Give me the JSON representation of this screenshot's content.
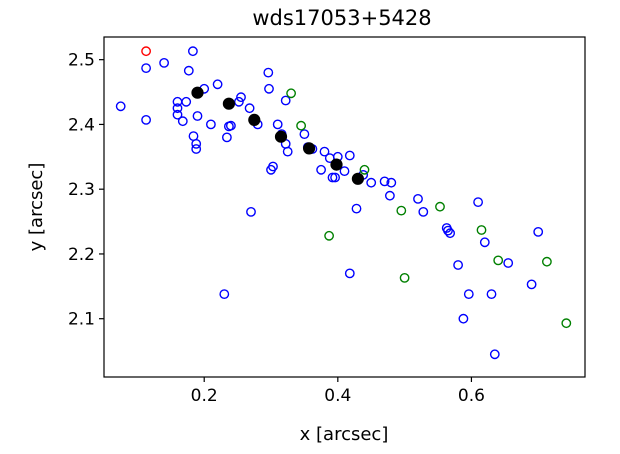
{
  "chart_data": {
    "type": "scatter",
    "title": "wds17053+5428",
    "xlabel": "x [arcsec]",
    "ylabel": "y [arcsec]",
    "xlim": [
      0.05,
      0.77
    ],
    "ylim": [
      2.01,
      2.535
    ],
    "x_ticks": [
      0.2,
      0.4,
      0.6
    ],
    "x_tick_labels": [
      "0.2",
      "0.4",
      "0.6"
    ],
    "y_ticks": [
      2.1,
      2.2,
      2.3,
      2.4,
      2.5
    ],
    "y_tick_labels": [
      "2.1",
      "2.2",
      "2.3",
      "2.4",
      "2.5"
    ],
    "grid": false,
    "legend": "none",
    "series": [
      {
        "marker": "open-circle",
        "color": "#0000ff",
        "points": [
          [
            0.075,
            2.428
          ],
          [
            0.113,
            2.487
          ],
          [
            0.113,
            2.407
          ],
          [
            0.14,
            2.495
          ],
          [
            0.16,
            2.435
          ],
          [
            0.16,
            2.425
          ],
          [
            0.16,
            2.415
          ],
          [
            0.168,
            2.405
          ],
          [
            0.173,
            2.435
          ],
          [
            0.177,
            2.483
          ],
          [
            0.183,
            2.513
          ],
          [
            0.184,
            2.382
          ],
          [
            0.188,
            2.37
          ],
          [
            0.188,
            2.362
          ],
          [
            0.19,
            2.413
          ],
          [
            0.2,
            2.455
          ],
          [
            0.21,
            2.4
          ],
          [
            0.22,
            2.462
          ],
          [
            0.234,
            2.38
          ],
          [
            0.237,
            2.397
          ],
          [
            0.24,
            2.398
          ],
          [
            0.252,
            2.435
          ],
          [
            0.255,
            2.442
          ],
          [
            0.268,
            2.425
          ],
          [
            0.27,
            2.265
          ],
          [
            0.23,
            2.138
          ],
          [
            0.28,
            2.4
          ],
          [
            0.296,
            2.48
          ],
          [
            0.297,
            2.455
          ],
          [
            0.3,
            2.33
          ],
          [
            0.303,
            2.335
          ],
          [
            0.31,
            2.4
          ],
          [
            0.316,
            2.385
          ],
          [
            0.322,
            2.437
          ],
          [
            0.325,
            2.358
          ],
          [
            0.322,
            2.37
          ],
          [
            0.35,
            2.385
          ],
          [
            0.355,
            2.365
          ],
          [
            0.362,
            2.362
          ],
          [
            0.375,
            2.33
          ],
          [
            0.38,
            2.358
          ],
          [
            0.388,
            2.348
          ],
          [
            0.392,
            2.318
          ],
          [
            0.396,
            2.318
          ],
          [
            0.4,
            2.35
          ],
          [
            0.41,
            2.328
          ],
          [
            0.418,
            2.352
          ],
          [
            0.428,
            2.27
          ],
          [
            0.418,
            2.17
          ],
          [
            0.438,
            2.322
          ],
          [
            0.45,
            2.31
          ],
          [
            0.47,
            2.312
          ],
          [
            0.478,
            2.29
          ],
          [
            0.48,
            2.31
          ],
          [
            0.52,
            2.285
          ],
          [
            0.528,
            2.265
          ],
          [
            0.563,
            2.24
          ],
          [
            0.565,
            2.236
          ],
          [
            0.568,
            2.232
          ],
          [
            0.58,
            2.183
          ],
          [
            0.588,
            2.1
          ],
          [
            0.596,
            2.138
          ],
          [
            0.61,
            2.28
          ],
          [
            0.62,
            2.218
          ],
          [
            0.63,
            2.138
          ],
          [
            0.635,
            2.045
          ],
          [
            0.655,
            2.186
          ],
          [
            0.69,
            2.153
          ],
          [
            0.7,
            2.234
          ]
        ]
      },
      {
        "marker": "open-circle",
        "color": "#008000",
        "points": [
          [
            0.33,
            2.448
          ],
          [
            0.345,
            2.398
          ],
          [
            0.44,
            2.33
          ],
          [
            0.387,
            2.228
          ],
          [
            0.495,
            2.267
          ],
          [
            0.5,
            2.163
          ],
          [
            0.553,
            2.273
          ],
          [
            0.615,
            2.237
          ],
          [
            0.64,
            2.19
          ],
          [
            0.713,
            2.188
          ],
          [
            0.742,
            2.093
          ]
        ]
      },
      {
        "marker": "open-circle",
        "color": "#ff0000",
        "points": [
          [
            0.113,
            2.513
          ]
        ]
      },
      {
        "marker": "filled-circle",
        "color": "#000000",
        "points": [
          [
            0.19,
            2.449
          ],
          [
            0.237,
            2.432
          ],
          [
            0.275,
            2.407
          ],
          [
            0.315,
            2.381
          ],
          [
            0.357,
            2.363
          ],
          [
            0.398,
            2.338
          ],
          [
            0.43,
            2.316
          ]
        ]
      }
    ]
  }
}
